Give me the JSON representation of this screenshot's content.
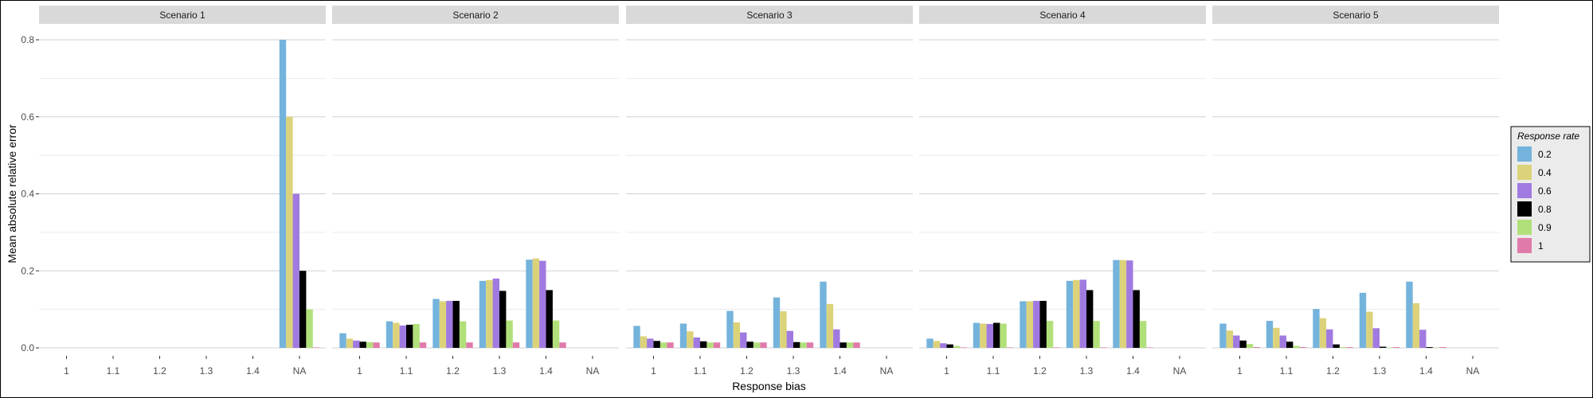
{
  "chart_data": {
    "type": "bar",
    "xlabel": "Response bias",
    "ylabel": "Mean absolute relative error",
    "ylim": [
      0,
      0.8
    ],
    "yticks": [
      "0.0",
      "0.2",
      "0.4",
      "0.6",
      "0.8"
    ],
    "categories": [
      "1",
      "1.1",
      "1.2",
      "1.3",
      "1.4",
      "NA"
    ],
    "legend": {
      "title": "Response rate",
      "placement": "right",
      "items": [
        {
          "label": "0.2",
          "color": "#74b3dc"
        },
        {
          "label": "0.4",
          "color": "#dcd27a"
        },
        {
          "label": "0.6",
          "color": "#a07ae0"
        },
        {
          "label": "0.8",
          "color": "#000000"
        },
        {
          "label": "0.9",
          "color": "#b1e07a"
        },
        {
          "label": "1",
          "color": "#e07aaa"
        }
      ]
    },
    "grid": true,
    "panels": [
      {
        "title": "Scenario 1",
        "series": [
          {
            "values": [
              null,
              null,
              null,
              null,
              null,
              0.8
            ]
          },
          {
            "values": [
              null,
              null,
              null,
              null,
              null,
              0.6
            ]
          },
          {
            "values": [
              null,
              null,
              null,
              null,
              null,
              0.4
            ]
          },
          {
            "values": [
              null,
              null,
              null,
              null,
              null,
              0.2
            ]
          },
          {
            "values": [
              null,
              null,
              null,
              null,
              null,
              0.1
            ]
          },
          {
            "values": [
              null,
              null,
              null,
              null,
              null,
              0.0
            ]
          }
        ]
      },
      {
        "title": "Scenario 2",
        "series": [
          {
            "values": [
              0.038,
              0.069,
              0.127,
              0.174,
              0.229,
              null
            ]
          },
          {
            "values": [
              0.024,
              0.065,
              0.121,
              0.176,
              0.232,
              null
            ]
          },
          {
            "values": [
              0.019,
              0.058,
              0.122,
              0.18,
              0.226,
              null
            ]
          },
          {
            "values": [
              0.016,
              0.06,
              0.122,
              0.148,
              0.15,
              null
            ]
          },
          {
            "values": [
              0.015,
              0.062,
              0.069,
              0.071,
              0.071,
              null
            ]
          },
          {
            "values": [
              0.014,
              0.014,
              0.014,
              0.014,
              0.014,
              null
            ]
          }
        ]
      },
      {
        "title": "Scenario 3",
        "series": [
          {
            "values": [
              0.057,
              0.063,
              0.096,
              0.131,
              0.172,
              null
            ]
          },
          {
            "values": [
              0.03,
              0.043,
              0.066,
              0.095,
              0.114,
              null
            ]
          },
          {
            "values": [
              0.024,
              0.027,
              0.04,
              0.044,
              0.048,
              null
            ]
          },
          {
            "values": [
              0.018,
              0.017,
              0.016,
              0.015,
              0.014,
              null
            ]
          },
          {
            "values": [
              0.014,
              0.014,
              0.014,
              0.014,
              0.014,
              null
            ]
          },
          {
            "values": [
              0.014,
              0.014,
              0.014,
              0.014,
              0.014,
              null
            ]
          }
        ]
      },
      {
        "title": "Scenario 4",
        "series": [
          {
            "values": [
              0.024,
              0.065,
              0.121,
              0.174,
              0.228,
              null
            ]
          },
          {
            "values": [
              0.018,
              0.063,
              0.121,
              0.176,
              0.228,
              null
            ]
          },
          {
            "values": [
              0.012,
              0.062,
              0.122,
              0.177,
              0.227,
              null
            ]
          },
          {
            "values": [
              0.009,
              0.065,
              0.122,
              0.15,
              0.15,
              null
            ]
          },
          {
            "values": [
              0.005,
              0.063,
              0.07,
              0.07,
              0.07,
              null
            ]
          },
          {
            "values": [
              0.001,
              0.001,
              0.001,
              0.001,
              0.001,
              null
            ]
          }
        ]
      },
      {
        "title": "Scenario 5",
        "series": [
          {
            "values": [
              0.063,
              0.07,
              0.101,
              0.143,
              0.172,
              null
            ]
          },
          {
            "values": [
              0.045,
              0.052,
              0.077,
              0.094,
              0.116,
              null
            ]
          },
          {
            "values": [
              0.032,
              0.032,
              0.048,
              0.051,
              0.047,
              null
            ]
          },
          {
            "values": [
              0.019,
              0.016,
              0.009,
              0.003,
              0.002,
              null
            ]
          },
          {
            "values": [
              0.01,
              0.005,
              0.002,
              0.001,
              0.001,
              null
            ]
          },
          {
            "values": [
              0.002,
              0.002,
              0.002,
              0.002,
              0.002,
              null
            ]
          }
        ]
      }
    ]
  }
}
